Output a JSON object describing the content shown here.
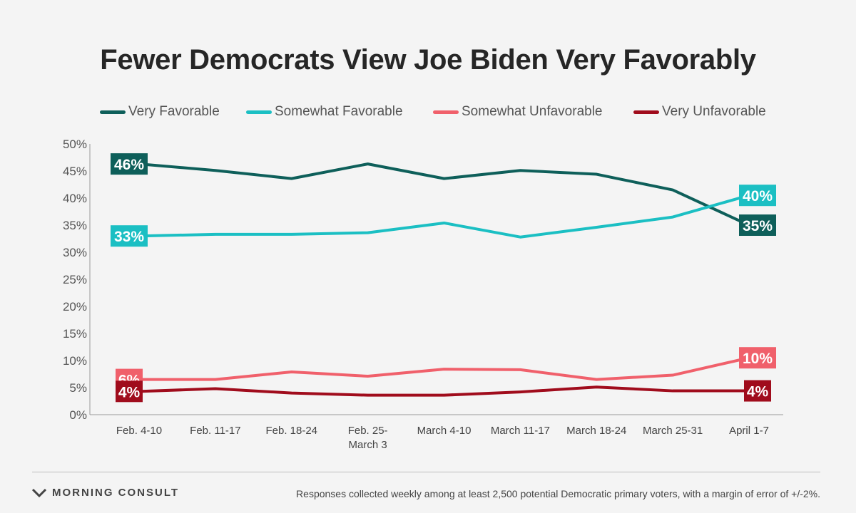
{
  "chart_data": {
    "type": "line",
    "title": "Fewer Democrats View Joe Biden Very Favorably",
    "categories": [
      [
        "Feb. 4-10"
      ],
      [
        "Feb. 11-17"
      ],
      [
        "Feb. 18-24"
      ],
      [
        "Feb. 25-",
        "March 3"
      ],
      [
        "March 4-10"
      ],
      [
        "March 11-17"
      ],
      [
        "March 18-24"
      ],
      [
        "March 25-31"
      ],
      [
        "April 1-7"
      ]
    ],
    "ylim": [
      0,
      50
    ],
    "yticks": [
      "0%",
      "5%",
      "10%",
      "15%",
      "20%",
      "25%",
      "30%",
      "35%",
      "40%",
      "45%",
      "50%"
    ],
    "grid": false,
    "legend_position": "top",
    "series": [
      {
        "name": "Very Favorable",
        "color": "#0e5f5a",
        "values": [
          46.3,
          45.1,
          43.6,
          46.3,
          43.6,
          45.1,
          44.4,
          41.5,
          35.0
        ],
        "start_label": "46%",
        "end_label": "35%"
      },
      {
        "name": "Somewhat Favorable",
        "color": "#1bbfc3",
        "values": [
          33.0,
          33.3,
          33.3,
          33.6,
          35.4,
          32.8,
          34.6,
          36.5,
          40.5
        ],
        "start_label": "33%",
        "end_label": "40%"
      },
      {
        "name": "Somewhat Unfavorable",
        "color": "#f0606b",
        "values": [
          6.5,
          6.5,
          7.9,
          7.1,
          8.4,
          8.3,
          6.5,
          7.3,
          10.5
        ],
        "start_label": "6%",
        "end_label": "10%"
      },
      {
        "name": "Very Unfavorable",
        "color": "#a00c1c",
        "values": [
          4.3,
          4.8,
          4.0,
          3.6,
          3.6,
          4.2,
          5.1,
          4.4,
          4.4
        ],
        "start_label": "4%",
        "end_label": "4%"
      }
    ]
  },
  "footer": {
    "brand": "MORNING CONSULT",
    "note": "Responses collected weekly among at least 2,500 potential Democratic primary voters, with a margin of error of +/-2%."
  }
}
